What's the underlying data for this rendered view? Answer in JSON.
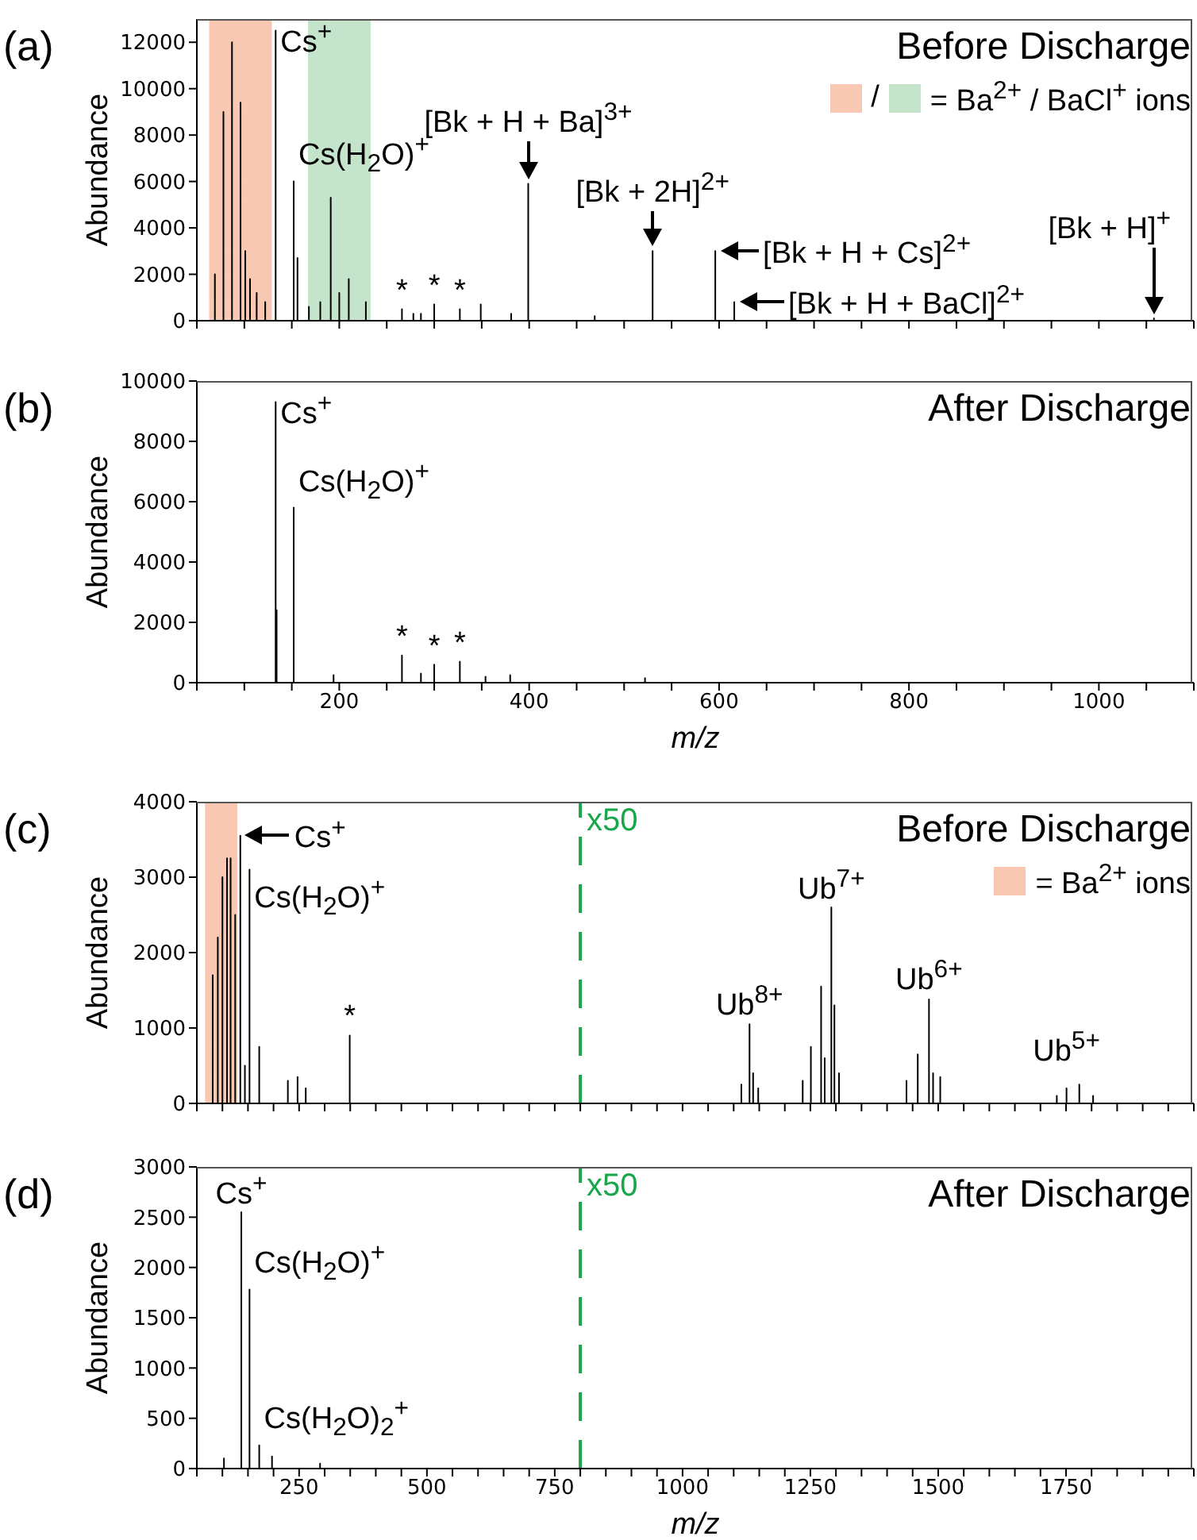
{
  "chart_data": [
    {
      "type": "line",
      "title": "Before Discharge",
      "ylabel": "Abundance",
      "color": "#000000",
      "tick_labels": "y",
      "annotations": [
        "(a)",
        "/",
        "= Ba$^{2+}$ / BaCl$^{+}$ ions",
        {
          "text": "Cs$^{+}$",
          "x": 133,
          "y": 12500
        },
        {
          "text": "Cs(H$_{2}$O)$^{+}$",
          "x": 152,
          "y": 6000
        },
        {
          "text": "[Bk + H + Ba]$^{3+}$",
          "x": 399,
          "y": 5900
        },
        {
          "text": "[Bk + 2H]$^{2+}$",
          "x": 530,
          "y": 3000
        },
        {
          "text": "[Bk + H + Cs]$^{2+}$",
          "x": 596,
          "y": 3000
        },
        {
          "text": "[Bk + H + BaCl]$^{2+}$",
          "x": 616,
          "y": 800
        },
        {
          "text": "[Bk + H]$^{+}$",
          "x": 1058,
          "y": 100
        },
        {
          "text": "*",
          "x": 266,
          "y": 500
        },
        {
          "text": "*",
          "x": 300,
          "y": 700
        },
        {
          "text": "*",
          "x": 327,
          "y": 500
        }
      ],
      "bands": [
        {
          "axis": "x",
          "from": 63,
          "to": 129,
          "color": "#f8c8b2"
        },
        {
          "axis": "x",
          "from": 167,
          "to": 233,
          "color": "#c4e5cc"
        }
      ],
      "x": [
        50,
        69,
        69,
        69,
        78,
        78,
        78,
        87,
        87,
        87,
        96,
        96,
        96,
        101,
        101,
        101,
        106,
        106,
        106,
        113,
        113,
        113,
        122,
        122,
        122,
        133,
        133,
        133,
        152,
        152,
        152,
        156,
        156,
        156,
        168,
        168,
        168,
        180,
        180,
        180,
        191,
        191,
        191,
        200,
        200,
        200,
        210,
        210,
        210,
        228,
        228,
        228,
        266,
        266,
        266,
        278,
        278,
        278,
        286,
        286,
        286,
        300,
        300,
        300,
        327,
        327,
        327,
        349,
        349,
        349,
        381,
        381,
        381,
        399,
        399,
        399,
        469,
        469,
        469,
        530,
        530,
        530,
        596,
        596,
        596,
        616,
        616,
        616,
        1058,
        1058,
        1058,
        1100
      ],
      "values": [
        0,
        0,
        2000,
        0,
        0,
        9000,
        0,
        0,
        12000,
        0,
        0,
        9400,
        0,
        0,
        3000,
        0,
        0,
        1800,
        0,
        0,
        1200,
        0,
        0,
        800,
        0,
        0,
        12500,
        0,
        0,
        6000,
        0,
        0,
        2700,
        0,
        0,
        600,
        0,
        0,
        800,
        0,
        0,
        5300,
        0,
        0,
        1200,
        0,
        0,
        1800,
        0,
        0,
        800,
        0,
        0,
        500,
        0,
        0,
        300,
        0,
        0,
        300,
        0,
        0,
        700,
        0,
        0,
        500,
        0,
        0,
        700,
        0,
        0,
        300,
        0,
        0,
        5900,
        0,
        0,
        200,
        0,
        0,
        3000,
        0,
        0,
        3000,
        0,
        0,
        800,
        0,
        0,
        100,
        0,
        0
      ],
      "xlim": [
        50,
        1100
      ],
      "ylim": [
        0,
        13000
      ],
      "xticks": [
        {
          "value": 50,
          "label": null
        },
        {
          "value": 100,
          "label": null
        },
        {
          "value": 150,
          "label": null
        },
        200,
        {
          "value": 250,
          "label": null
        },
        {
          "value": 300,
          "label": null
        },
        {
          "value": 350,
          "label": null
        },
        400,
        {
          "value": 450,
          "label": null
        },
        {
          "value": 500,
          "label": null
        },
        {
          "value": 550,
          "label": null
        },
        600,
        {
          "value": 650,
          "label": null
        },
        {
          "value": 700,
          "label": null
        },
        {
          "value": 750,
          "label": null
        },
        800,
        {
          "value": 850,
          "label": null
        },
        {
          "value": 900,
          "label": null
        },
        {
          "value": 950,
          "label": null
        },
        1000,
        {
          "value": 1050,
          "label": null
        },
        {
          "value": 1100,
          "label": null
        }
      ],
      "yticks": [
        0,
        2000,
        4000,
        6000,
        8000,
        10000,
        12000
      ]
    },
    {
      "type": "line",
      "title": "After Discharge",
      "ylabel": "Abundance",
      "xlabel": "m/z",
      "color": "#000000",
      "annotations": [
        "(b)",
        {
          "text": "Cs$^{+}$",
          "x": 133,
          "y": 9300
        },
        {
          "text": "Cs(H$_{2}$O)$^{+}$",
          "x": 152,
          "y": 5800
        },
        {
          "text": "*",
          "x": 266,
          "y": 900
        },
        {
          "text": "*",
          "x": 300,
          "y": 600
        },
        {
          "text": "*",
          "x": 327,
          "y": 700
        }
      ],
      "x": [
        50,
        133,
        133,
        133,
        134,
        134,
        134,
        152,
        152,
        152,
        194,
        194,
        194,
        266,
        266,
        266,
        286,
        286,
        286,
        300,
        300,
        300,
        327,
        327,
        327,
        354,
        354,
        354,
        380,
        380,
        380,
        522,
        522,
        522,
        1100
      ],
      "values": [
        0,
        0,
        9300,
        0,
        0,
        2400,
        0,
        0,
        5800,
        0,
        0,
        250,
        0,
        0,
        900,
        0,
        0,
        300,
        0,
        0,
        600,
        0,
        0,
        700,
        0,
        0,
        200,
        0,
        0,
        250,
        0,
        0,
        150,
        0,
        0
      ],
      "xlim": [
        50,
        1100
      ],
      "ylim": [
        0,
        10000
      ],
      "xticks": [
        {
          "value": 50,
          "label": null
        },
        {
          "value": 100,
          "label": null
        },
        {
          "value": 150,
          "label": null
        },
        200,
        {
          "value": 250,
          "label": null
        },
        {
          "value": 300,
          "label": null
        },
        {
          "value": 350,
          "label": null
        },
        400,
        {
          "value": 450,
          "label": null
        },
        {
          "value": 500,
          "label": null
        },
        {
          "value": 550,
          "label": null
        },
        600,
        {
          "value": 650,
          "label": null
        },
        {
          "value": 700,
          "label": null
        },
        {
          "value": 750,
          "label": null
        },
        800,
        {
          "value": 850,
          "label": null
        },
        {
          "value": 900,
          "label": null
        },
        {
          "value": 950,
          "label": null
        },
        1000,
        {
          "value": 1050,
          "label": null
        },
        {
          "value": 1100,
          "label": null
        }
      ],
      "yticks": [
        0,
        2000,
        4000,
        6000,
        8000,
        10000
      ]
    },
    {
      "type": "line",
      "title": "Before Discharge",
      "ylabel": "Abundance",
      "color": "#000000",
      "tick_labels": "y",
      "annotations": [
        "(c)",
        "= Ba$^{2+}$ ions",
        {
          "text": "Cs$^{+}$",
          "x": 135,
          "y": 3550
        },
        {
          "text": "Cs(H$_{2}$O)$^{+}$",
          "x": 153,
          "y": 3100
        },
        {
          "text": "*",
          "x": 349,
          "y": 900
        },
        {
          "text": "Ub$^{8+}$",
          "x": 1131,
          "y": 1050
        },
        {
          "text": "Ub$^{7+}$",
          "x": 1291,
          "y": 2600
        },
        {
          "text": "Ub$^{6+}$",
          "x": 1482,
          "y": 1380
        },
        {
          "text": "Ub$^{5+}$",
          "x": 1751,
          "y": 200
        }
      ],
      "bands": [
        {
          "axis": "x",
          "from": 66,
          "to": 129,
          "color": "#f8c8b2"
        }
      ],
      "ref_lines": [
        {
          "axis": "x",
          "value": 800,
          "label": "x50",
          "color": "#1aa64a",
          "line_style": "dashed"
        }
      ],
      "x": [
        50,
        81,
        81,
        81,
        91,
        91,
        91,
        100,
        100,
        100,
        109,
        109,
        109,
        116,
        116,
        116,
        125,
        125,
        125,
        135,
        135,
        135,
        144,
        144,
        144,
        153,
        153,
        153,
        172,
        172,
        172,
        228,
        228,
        228,
        247,
        247,
        247,
        263,
        263,
        263,
        349,
        349,
        349,
        1115,
        1115,
        1115,
        1131,
        1131,
        1131,
        1138,
        1138,
        1138,
        1148,
        1148,
        1148,
        1235,
        1235,
        1235,
        1251,
        1251,
        1251,
        1271,
        1271,
        1271,
        1278,
        1278,
        1278,
        1291,
        1291,
        1291,
        1297,
        1297,
        1297,
        1306,
        1306,
        1306,
        1438,
        1438,
        1438,
        1460,
        1460,
        1460,
        1482,
        1482,
        1482,
        1490,
        1490,
        1490,
        1504,
        1504,
        1504,
        1732,
        1732,
        1732,
        1751,
        1751,
        1751,
        1776,
        1776,
        1776,
        1803,
        1803,
        1803,
        2000
      ],
      "values": [
        0,
        0,
        1700,
        0,
        0,
        2200,
        0,
        0,
        3000,
        0,
        0,
        3250,
        0,
        0,
        3250,
        0,
        0,
        2500,
        0,
        0,
        3550,
        0,
        0,
        500,
        0,
        0,
        3100,
        0,
        0,
        750,
        0,
        0,
        300,
        0,
        0,
        350,
        0,
        0,
        200,
        0,
        0,
        900,
        0,
        0,
        250,
        0,
        0,
        1050,
        0,
        0,
        400,
        0,
        0,
        200,
        0,
        0,
        300,
        0,
        0,
        750,
        0,
        0,
        1550,
        0,
        0,
        600,
        0,
        0,
        2600,
        0,
        0,
        1300,
        0,
        0,
        400,
        0,
        0,
        300,
        0,
        0,
        650,
        0,
        0,
        1380,
        0,
        0,
        400,
        0,
        0,
        350,
        0,
        0,
        100,
        0,
        0,
        200,
        0,
        0,
        250,
        0,
        0,
        100,
        0,
        0
      ],
      "xlim": [
        50,
        2000
      ],
      "ylim": [
        0,
        4000
      ],
      "xticks": [
        {
          "value": 50,
          "label": null
        },
        {
          "value": 100,
          "label": null
        },
        {
          "value": 150,
          "label": null
        },
        {
          "value": 200,
          "label": null
        },
        250,
        {
          "value": 300,
          "label": null
        },
        {
          "value": 350,
          "label": null
        },
        {
          "value": 400,
          "label": null
        },
        {
          "value": 450,
          "label": null
        },
        500,
        {
          "value": 550,
          "label": null
        },
        {
          "value": 600,
          "label": null
        },
        {
          "value": 650,
          "label": null
        },
        {
          "value": 700,
          "label": null
        },
        750,
        {
          "value": 800,
          "label": null
        },
        {
          "value": 850,
          "label": null
        },
        {
          "value": 900,
          "label": null
        },
        {
          "value": 950,
          "label": null
        },
        1000,
        {
          "value": 1050,
          "label": null
        },
        {
          "value": 1100,
          "label": null
        },
        {
          "value": 1150,
          "label": null
        },
        {
          "value": 1200,
          "label": null
        },
        1250,
        {
          "value": 1300,
          "label": null
        },
        {
          "value": 1350,
          "label": null
        },
        {
          "value": 1400,
          "label": null
        },
        {
          "value": 1450,
          "label": null
        },
        1500,
        {
          "value": 1550,
          "label": null
        },
        {
          "value": 1600,
          "label": null
        },
        {
          "value": 1650,
          "label": null
        },
        {
          "value": 1700,
          "label": null
        },
        1750,
        {
          "value": 1800,
          "label": null
        },
        {
          "value": 1850,
          "label": null
        },
        {
          "value": 1900,
          "label": null
        },
        {
          "value": 1950,
          "label": null
        },
        {
          "value": 2000,
          "label": null
        }
      ],
      "yticks": [
        0,
        1000,
        2000,
        3000,
        4000
      ]
    },
    {
      "type": "line",
      "title": "After Discharge",
      "ylabel": "Abundance",
      "xlabel": "m/z",
      "color": "#000000",
      "annotations": [
        "(d)",
        {
          "text": "Cs$^{+}$",
          "x": 137,
          "y": 2550
        },
        {
          "text": "Cs(H$_{2}$O)$^{+}$",
          "x": 153,
          "y": 1780
        },
        {
          "text": "Cs(H$_{2}$O)$_{2}$$^{+}$",
          "x": 172,
          "y": 230
        }
      ],
      "ref_lines": [
        {
          "axis": "x",
          "value": 800,
          "label": "x50",
          "color": "#1aa64a",
          "line_style": "dashed"
        }
      ],
      "x": [
        50,
        103,
        103,
        103,
        137,
        137,
        137,
        153,
        153,
        153,
        172,
        172,
        172,
        197,
        197,
        197,
        291,
        291,
        291,
        2000
      ],
      "values": [
        0,
        0,
        100,
        0,
        0,
        2550,
        0,
        0,
        1780,
        0,
        0,
        230,
        0,
        0,
        120,
        0,
        0,
        50,
        0,
        0
      ],
      "xlim": [
        50,
        2000
      ],
      "ylim": [
        0,
        3000
      ],
      "xticks": [
        {
          "value": 50,
          "label": null
        },
        {
          "value": 100,
          "label": null
        },
        {
          "value": 150,
          "label": null
        },
        {
          "value": 200,
          "label": null
        },
        250,
        {
          "value": 300,
          "label": null
        },
        {
          "value": 350,
          "label": null
        },
        {
          "value": 400,
          "label": null
        },
        {
          "value": 450,
          "label": null
        },
        500,
        {
          "value": 550,
          "label": null
        },
        {
          "value": 600,
          "label": null
        },
        {
          "value": 650,
          "label": null
        },
        {
          "value": 700,
          "label": null
        },
        750,
        {
          "value": 800,
          "label": null
        },
        {
          "value": 850,
          "label": null
        },
        {
          "value": 900,
          "label": null
        },
        {
          "value": 950,
          "label": null
        },
        1000,
        {
          "value": 1050,
          "label": null
        },
        {
          "value": 1100,
          "label": null
        },
        {
          "value": 1150,
          "label": null
        },
        {
          "value": 1200,
          "label": null
        },
        1250,
        {
          "value": 1300,
          "label": null
        },
        {
          "value": 1350,
          "label": null
        },
        {
          "value": 1400,
          "label": null
        },
        {
          "value": 1450,
          "label": null
        },
        1500,
        {
          "value": 1550,
          "label": null
        },
        {
          "value": 1600,
          "label": null
        },
        {
          "value": 1650,
          "label": null
        },
        {
          "value": 1700,
          "label": null
        },
        1750,
        {
          "value": 1800,
          "label": null
        },
        {
          "value": 1850,
          "label": null
        },
        {
          "value": 1900,
          "label": null
        },
        {
          "value": 1950,
          "label": null
        },
        {
          "value": 2000,
          "label": null
        }
      ],
      "yticks": [
        0,
        500,
        1000,
        1500,
        2000,
        2500,
        3000
      ]
    }
  ]
}
